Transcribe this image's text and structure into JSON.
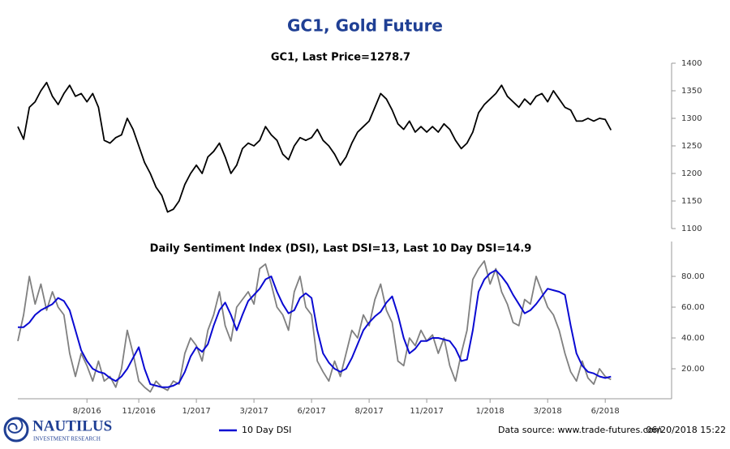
{
  "title": "GC1, Gold Future",
  "logo": {
    "name": "NAUTILUS",
    "tagline": "INVESTMENT RESEARCH"
  },
  "footer": {
    "source": "Data source: www.trade-futures.com",
    "timestamp": "06/20/2018 15:22"
  },
  "chart_data": [
    {
      "type": "line",
      "title": "GC1, Last Price=1278.7",
      "ylim": [
        1100,
        1400
      ],
      "yticks": [
        1100,
        1150,
        1200,
        1250,
        1300,
        1350,
        1400
      ],
      "series": [
        {
          "color": "#000000",
          "values": [
            1285,
            1262,
            1320,
            1330,
            1350,
            1365,
            1340,
            1325,
            1345,
            1360,
            1340,
            1345,
            1330,
            1345,
            1320,
            1260,
            1255,
            1265,
            1270,
            1300,
            1280,
            1250,
            1220,
            1200,
            1175,
            1160,
            1130,
            1135,
            1150,
            1180,
            1200,
            1215,
            1200,
            1230,
            1240,
            1255,
            1230,
            1200,
            1215,
            1245,
            1255,
            1250,
            1260,
            1285,
            1270,
            1260,
            1235,
            1225,
            1250,
            1265,
            1260,
            1265,
            1280,
            1260,
            1250,
            1235,
            1215,
            1230,
            1255,
            1275,
            1285,
            1295,
            1320,
            1345,
            1335,
            1315,
            1290,
            1280,
            1295,
            1275,
            1285,
            1275,
            1285,
            1275,
            1290,
            1280,
            1260,
            1245,
            1255,
            1275,
            1310,
            1325,
            1335,
            1345,
            1360,
            1340,
            1330,
            1320,
            1335,
            1325,
            1340,
            1345,
            1330,
            1350,
            1335,
            1320,
            1315,
            1295,
            1295,
            1300,
            1295,
            1300,
            1298,
            1278.7
          ]
        }
      ]
    },
    {
      "type": "line",
      "title": "Daily Sentiment Index (DSI), Last DSI=13, Last 10 Day DSI=14.9",
      "categories": [
        null,
        null,
        null,
        null,
        null,
        null,
        null,
        null,
        null,
        null,
        null,
        null,
        "8/2016",
        null,
        null,
        null,
        null,
        null,
        null,
        null,
        null,
        "11/2016",
        null,
        null,
        null,
        null,
        null,
        null,
        null,
        null,
        null,
        "1/2017",
        null,
        null,
        null,
        null,
        null,
        null,
        null,
        null,
        null,
        "3/2017",
        null,
        null,
        null,
        null,
        null,
        null,
        null,
        null,
        null,
        "6/2017",
        null,
        null,
        null,
        null,
        null,
        null,
        null,
        null,
        null,
        "8/2017",
        null,
        null,
        null,
        null,
        null,
        null,
        null,
        null,
        null,
        "11/2017",
        null,
        null,
        null,
        null,
        null,
        null,
        null,
        null,
        null,
        null,
        "1/2018",
        null,
        null,
        null,
        null,
        null,
        null,
        null,
        null,
        null,
        "3/2018",
        null,
        null,
        null,
        null,
        null,
        null,
        null,
        null,
        null,
        "6/2018",
        null
      ],
      "ylim": [
        0,
        100
      ],
      "yticks": [
        {
          "value": 20,
          "label": "20.00"
        },
        {
          "value": 40,
          "label": "40.00"
        },
        {
          "value": 60,
          "label": "60.00"
        },
        {
          "value": 80,
          "label": "80.00"
        }
      ],
      "legend": "bottom",
      "series": [
        {
          "color": "#808080",
          "values": [
            38,
            55,
            80,
            62,
            75,
            58,
            70,
            60,
            55,
            30,
            15,
            30,
            22,
            12,
            25,
            12,
            15,
            8,
            20,
            45,
            30,
            12,
            8,
            5,
            12,
            8,
            6,
            12,
            10,
            30,
            40,
            35,
            25,
            45,
            55,
            70,
            48,
            38,
            60,
            65,
            70,
            62,
            85,
            88,
            75,
            60,
            55,
            45,
            70,
            80,
            60,
            55,
            25,
            18,
            12,
            25,
            15,
            30,
            45,
            40,
            55,
            48,
            65,
            75,
            58,
            50,
            25,
            22,
            40,
            35,
            45,
            38,
            42,
            30,
            40,
            22,
            12,
            30,
            45,
            78,
            85,
            90,
            75,
            85,
            70,
            62,
            50,
            48,
            65,
            62,
            80,
            70,
            60,
            55,
            45,
            30,
            18,
            12,
            25,
            14,
            10,
            20,
            15,
            13
          ]
        },
        {
          "name": "10 Day DSI",
          "color": "#0a0ad2",
          "values": [
            47,
            47,
            50,
            55,
            58,
            60,
            62,
            66,
            64,
            58,
            45,
            32,
            25,
            20,
            18,
            17,
            14,
            12,
            15,
            20,
            27,
            34,
            20,
            10,
            9,
            8,
            8,
            9,
            11,
            18,
            28,
            34,
            31,
            36,
            48,
            58,
            63,
            55,
            45,
            55,
            64,
            68,
            72,
            78,
            80,
            70,
            62,
            56,
            58,
            66,
            69,
            66,
            45,
            30,
            24,
            20,
            18,
            20,
            27,
            36,
            45,
            50,
            54,
            57,
            63,
            67,
            55,
            40,
            30,
            33,
            38,
            38,
            40,
            40,
            39,
            38,
            33,
            25,
            26,
            45,
            70,
            78,
            82,
            84,
            80,
            75,
            68,
            62,
            56,
            58,
            62,
            67,
            72,
            71,
            70,
            68,
            48,
            30,
            22,
            18,
            17,
            15,
            14,
            14.9
          ]
        }
      ]
    }
  ]
}
